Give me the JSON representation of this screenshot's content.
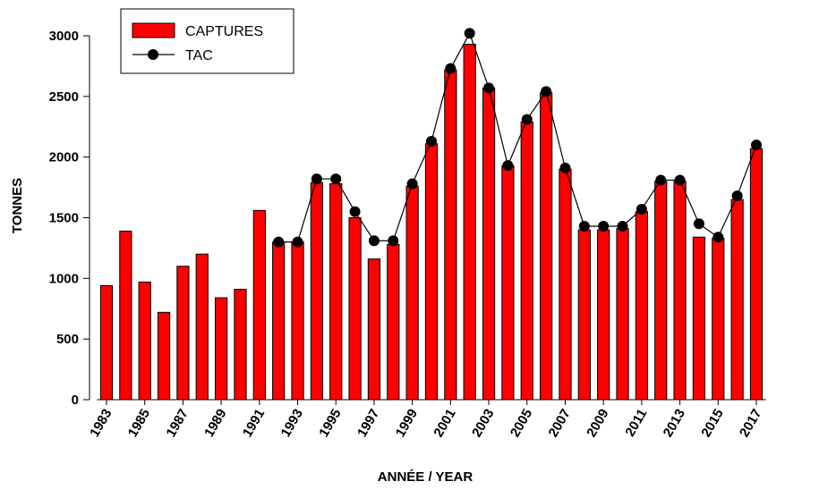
{
  "chart_data": {
    "type": "bar_line",
    "x_label": "ANNÉE / YEAR",
    "y_label": "TONNES",
    "categories": [
      "1983",
      null,
      "1985",
      null,
      "1987",
      null,
      "1989",
      null,
      "1991",
      null,
      "1993",
      null,
      "1995",
      null,
      "1997",
      null,
      "1999",
      null,
      "2001",
      null,
      "2003",
      null,
      "2005",
      null,
      "2007",
      null,
      "2009",
      null,
      "2011",
      null,
      "2013",
      null,
      "2015",
      null,
      "2017"
    ],
    "series": [
      {
        "name": "CAPTURES",
        "type": "bar",
        "color": "#ff0000",
        "values": [
          940,
          1390,
          970,
          720,
          1100,
          1200,
          840,
          910,
          1560,
          1300,
          1300,
          1790,
          1780,
          1500,
          1160,
          1280,
          1760,
          2110,
          2720,
          2930,
          2570,
          1930,
          2290,
          2530,
          1900,
          1400,
          1400,
          1410,
          1550,
          1800,
          1800,
          1340,
          1330,
          1650,
          2070
        ]
      },
      {
        "name": "TAC",
        "type": "line",
        "color": "#000000",
        "values": [
          null,
          null,
          null,
          null,
          null,
          null,
          null,
          null,
          null,
          1300,
          1300,
          1820,
          1820,
          1550,
          1310,
          1310,
          1780,
          2130,
          2730,
          3020,
          2570,
          1930,
          2310,
          2540,
          1910,
          1430,
          1430,
          1430,
          1570,
          1810,
          1810,
          1450,
          1340,
          1680,
          2100
        ]
      }
    ],
    "ylim": [
      0,
      3000
    ],
    "yticks": [
      0,
      500,
      1000,
      1500,
      2000,
      2500,
      3000
    ],
    "legend": "top-left"
  }
}
